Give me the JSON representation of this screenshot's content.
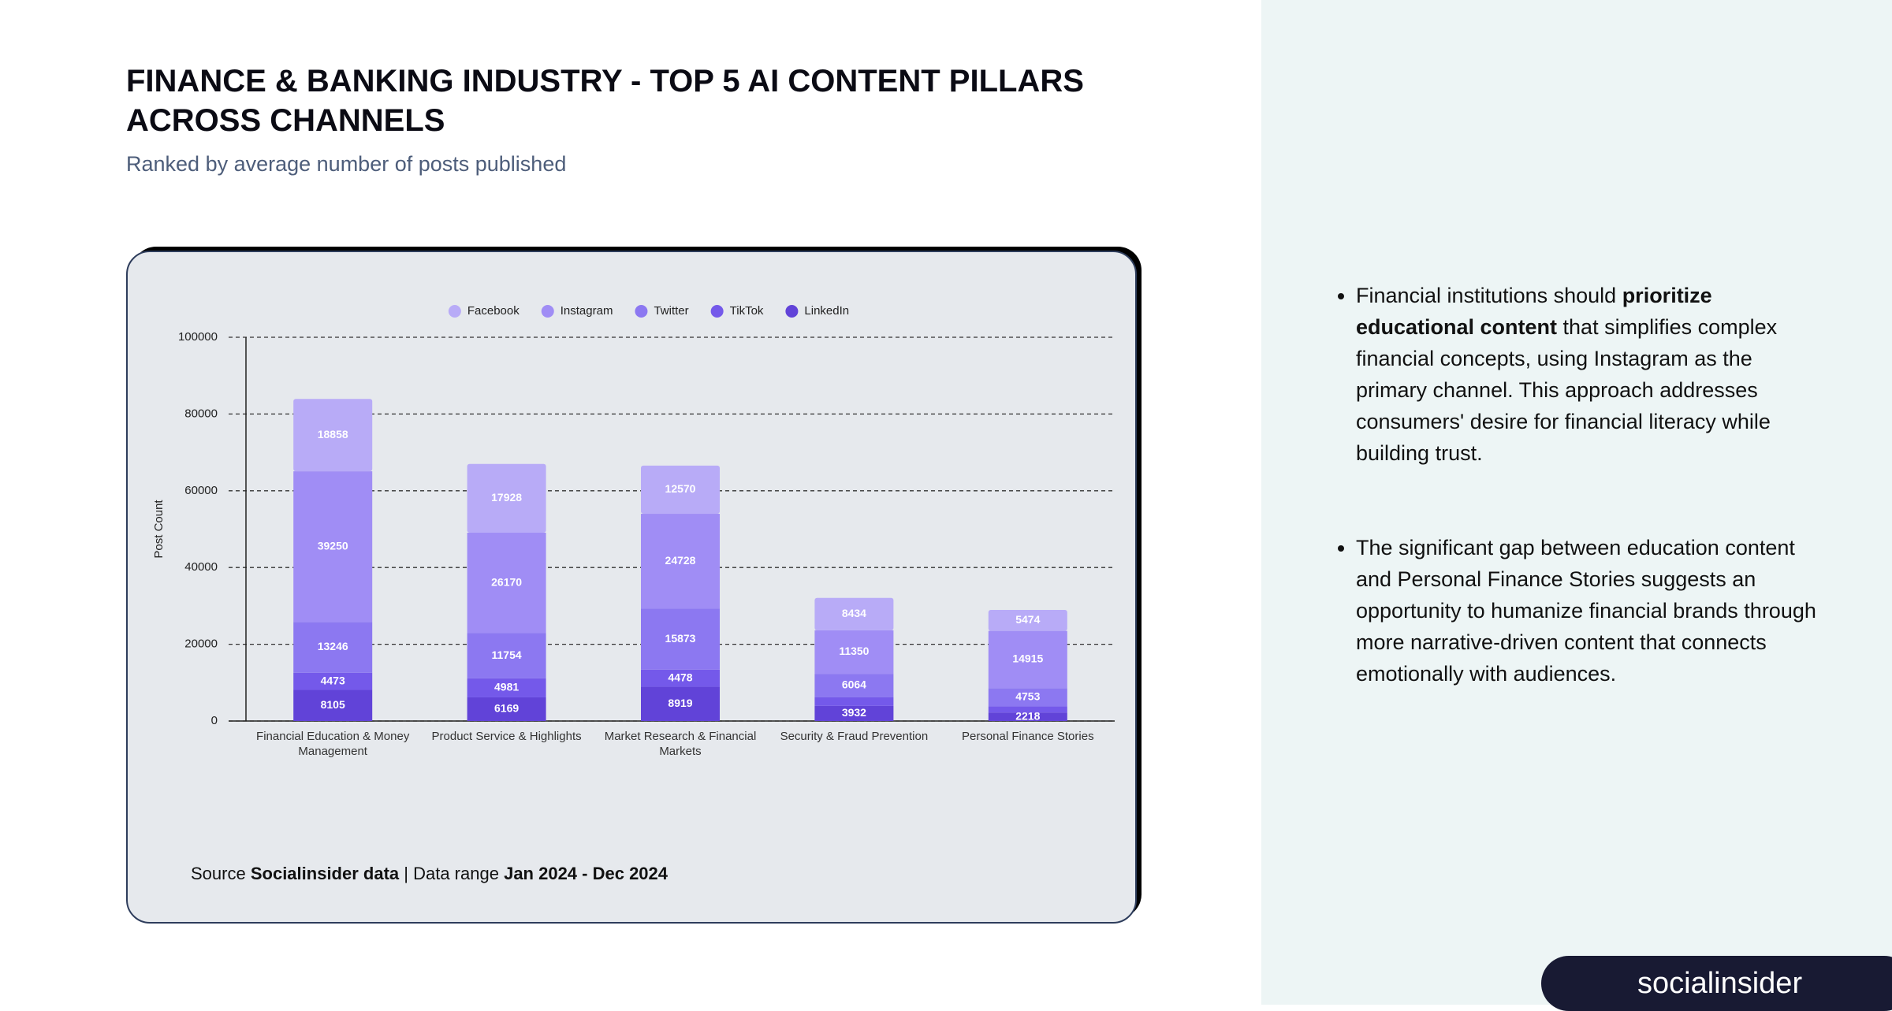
{
  "header": {
    "title": "FINANCE & BANKING INDUSTRY - TOP 5 AI CONTENT PILLARS ACROSS CHANNELS",
    "subtitle": "Ranked by average number of posts published"
  },
  "chart_data": {
    "type": "stacked_bar",
    "y_label": "Post Count",
    "categories": [
      "Financial Education & Money Management",
      "Product Service & Highlights",
      "Market Research & Financial Markets",
      "Security & Fraud Prevention",
      "Personal Finance Stories"
    ],
    "series": [
      {
        "name": "Facebook",
        "color": "#b8abf7",
        "values": [
          18858,
          17928,
          12570,
          8434,
          5474
        ]
      },
      {
        "name": "Instagram",
        "color": "#a08df5",
        "values": [
          39250,
          26170,
          24728,
          11350,
          14915
        ]
      },
      {
        "name": "Twitter",
        "color": "#8c78f1",
        "values": [
          13246,
          11754,
          15873,
          6064,
          4753
        ]
      },
      {
        "name": "TikTok",
        "color": "#7459ea",
        "values": [
          4473,
          4981,
          4478,
          2300,
          1600
        ],
        "value_labels": [
          "4473",
          "4981",
          "4478",
          null,
          null
        ]
      },
      {
        "name": "LinkedIn",
        "color": "#6143d8",
        "values": [
          8105,
          6169,
          8919,
          3932,
          2218
        ]
      }
    ],
    "ylim": [
      0,
      100000
    ],
    "yticks": [
      0,
      20000,
      40000,
      60000,
      80000,
      100000
    ],
    "grid": true,
    "legend": "top"
  },
  "source": {
    "prefix": "Source",
    "name": "Socialinsider data",
    "separator": "| Data range",
    "range": "Jan 2024 - Dec 2024"
  },
  "insights": [
    {
      "before": "Financial institutions should ",
      "bold": "prioritize educational content",
      "after": " that simplifies complex financial concepts, using Instagram as the primary channel. This approach addresses consumers' desire for financial literacy while building trust."
    },
    {
      "before": "The significant gap between education content and Personal Finance Stories suggests an opportunity to humanize financial brands through more narrative-driven content that connects emotionally with audiences."
    }
  ],
  "logo": "socialinsider"
}
